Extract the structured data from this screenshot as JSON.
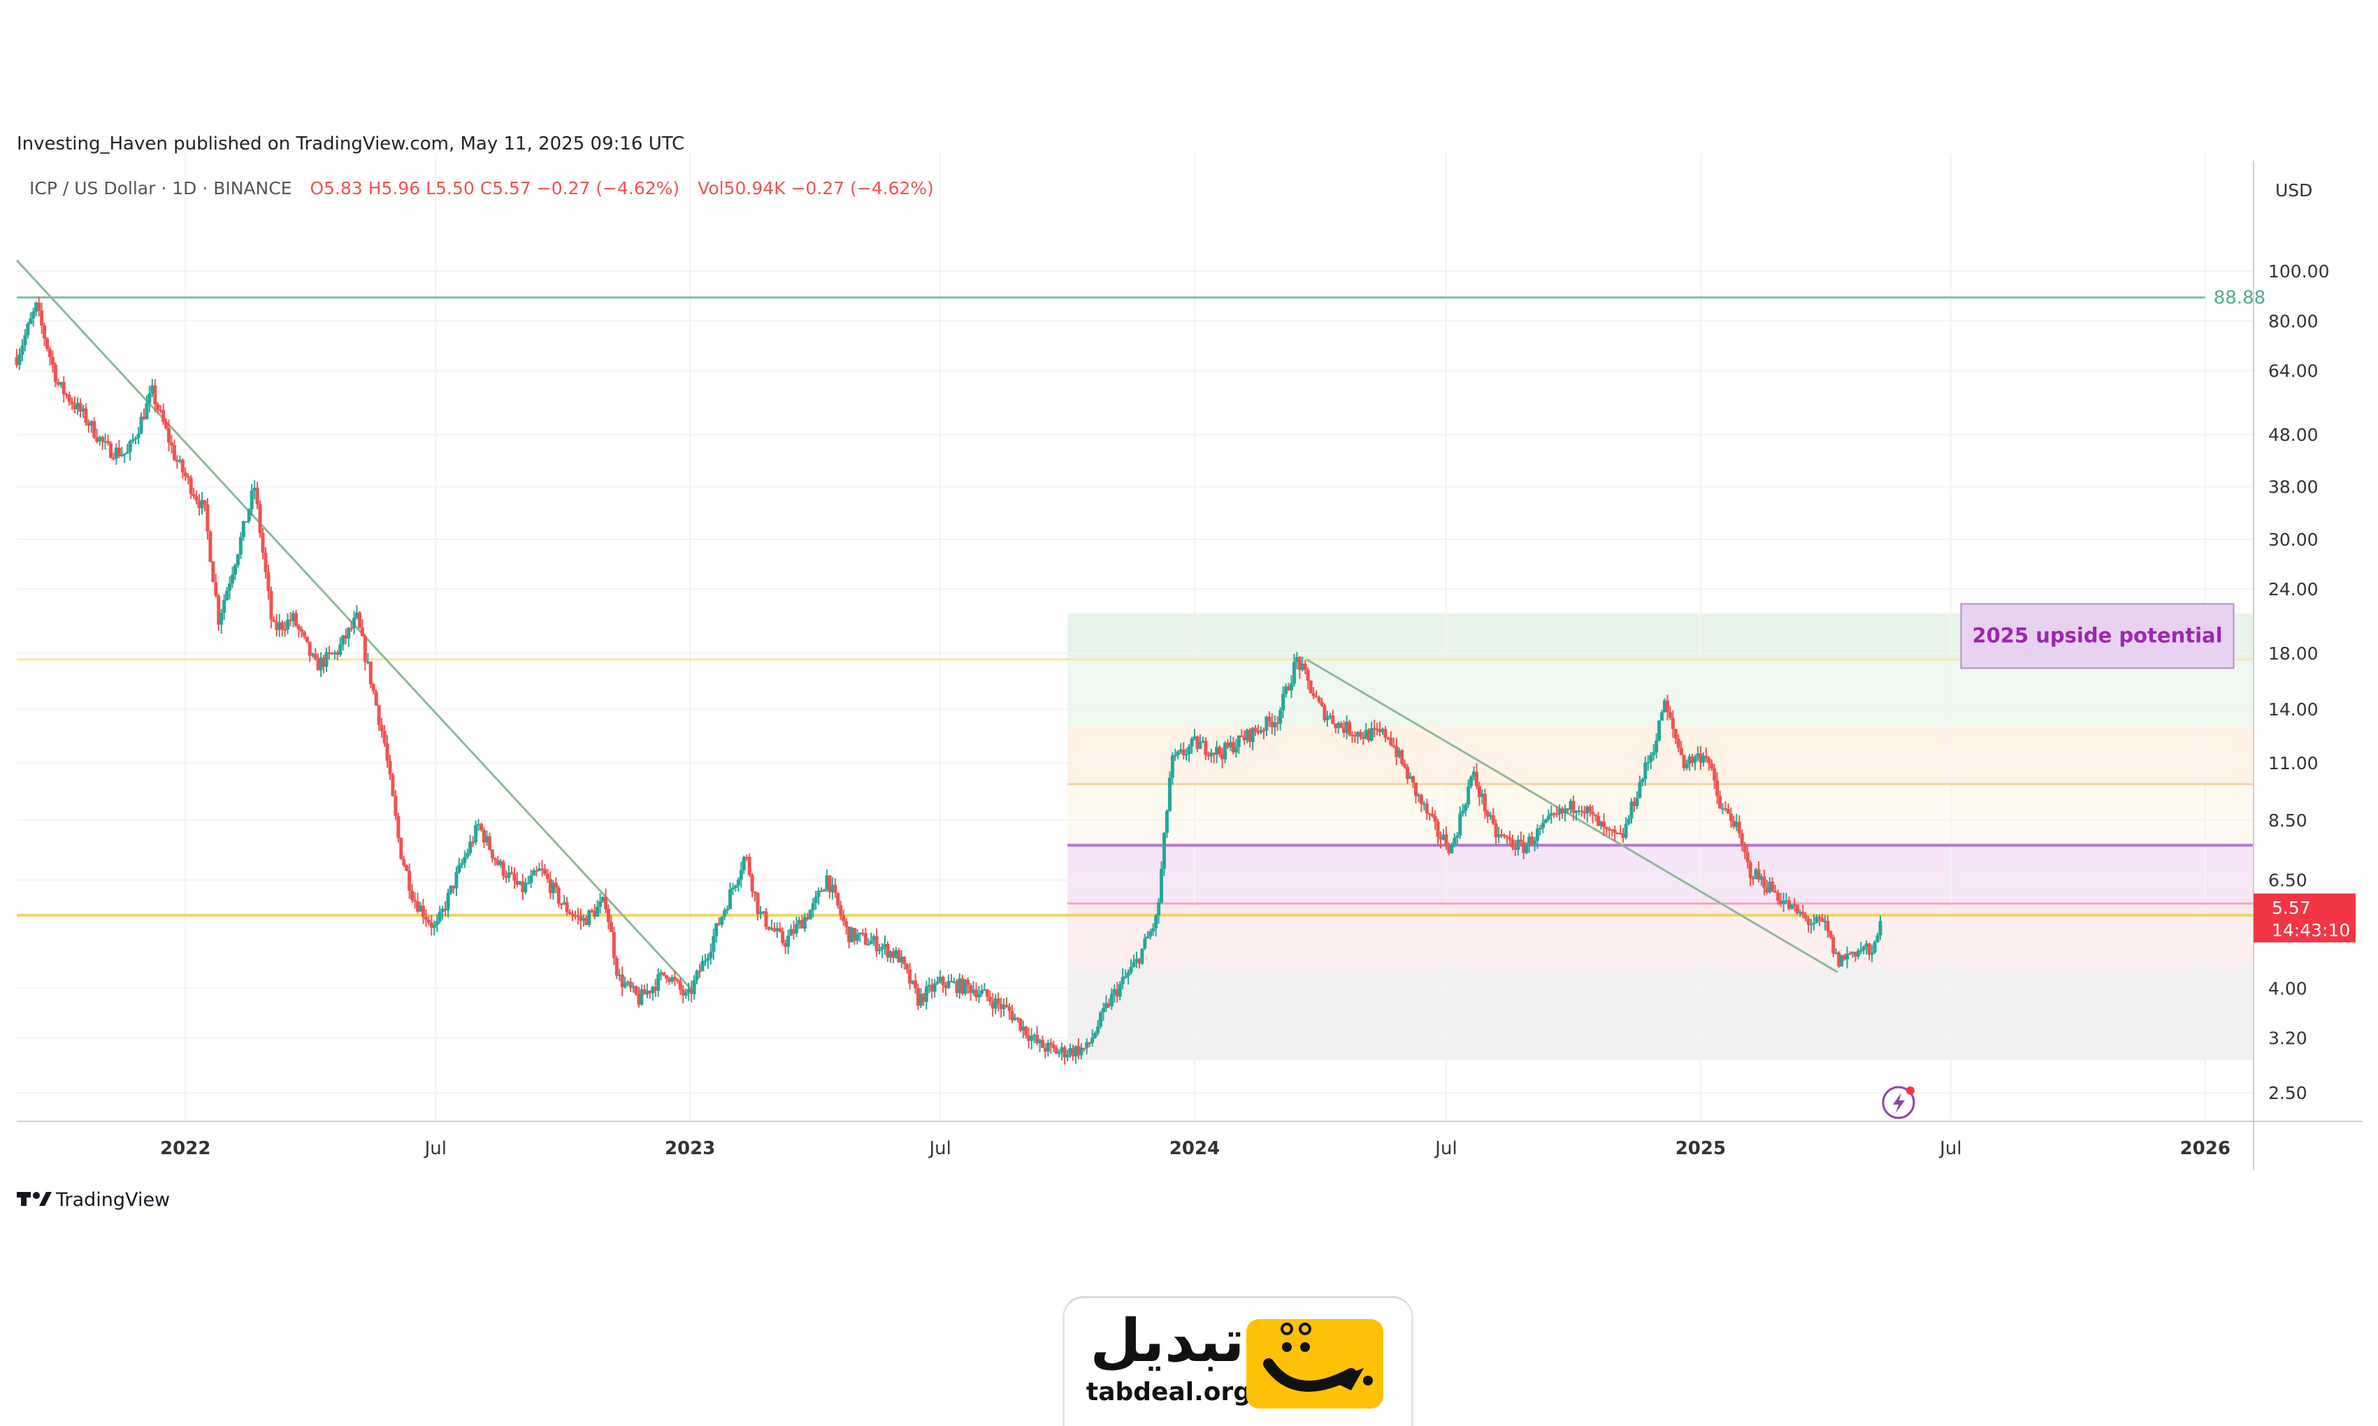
{
  "header": {
    "published": "Investing_Haven published on TradingView.com, May 11, 2025 09:16 UTC",
    "symbol": "ICP / US Dollar · 1D · BINANCE",
    "ohlc": "O5.83  H5.96  L5.50  C5.57  −0.27 (−4.62%)",
    "volume": "Vol50.94K  −0.27 (−4.62%)"
  },
  "footer": {
    "brand": "TradingView"
  },
  "logo": {
    "word": "تبدیل",
    "url": "tabdeal.org"
  },
  "colors": {
    "up": "#26a69a",
    "down": "#ef5350",
    "price_tag": "#f23645",
    "level_green": "#7fbfa5",
    "annotation": "#9c27b0"
  },
  "chart_data": {
    "type": "candlestick",
    "title": "ICP / US Dollar · 1D · BINANCE",
    "currency": "USD",
    "scale": "log",
    "ylim": [
      2.2,
      120
    ],
    "xlim": [
      "2021-09-01",
      "2026-02-05"
    ],
    "grid": true,
    "y_ticks": [
      "100.00",
      "80.00",
      "64.00",
      "48.00",
      "38.00",
      "30.00",
      "24.00",
      "18.00",
      "14.00",
      "11.00",
      "8.50",
      "6.50",
      "5.57",
      "4.00",
      "3.20",
      "2.50"
    ],
    "x_ticks": [
      {
        "date": "2022-01-01",
        "label": "2022"
      },
      {
        "date": "2022-07-01",
        "label": "Jul"
      },
      {
        "date": "2023-01-01",
        "label": "2023"
      },
      {
        "date": "2023-07-01",
        "label": "Jul"
      },
      {
        "date": "2024-01-01",
        "label": "2024"
      },
      {
        "date": "2024-07-01",
        "label": "Jul"
      },
      {
        "date": "2025-01-01",
        "label": "2025"
      },
      {
        "date": "2025-07-01",
        "label": "Jul"
      },
      {
        "date": "2026-01-01",
        "label": "2026"
      }
    ],
    "price_path": [
      [
        "2021-09-01",
        68
      ],
      [
        "2021-09-15",
        85
      ],
      [
        "2021-10-01",
        60
      ],
      [
        "2021-10-20",
        52
      ],
      [
        "2021-11-05",
        45
      ],
      [
        "2021-11-20",
        44
      ],
      [
        "2021-12-08",
        58
      ],
      [
        "2021-12-25",
        43
      ],
      [
        "2022-01-15",
        34
      ],
      [
        "2022-01-25",
        21
      ],
      [
        "2022-02-10",
        30
      ],
      [
        "2022-02-20",
        38
      ],
      [
        "2022-03-05",
        20
      ],
      [
        "2022-03-20",
        21
      ],
      [
        "2022-04-05",
        17
      ],
      [
        "2022-04-20",
        18
      ],
      [
        "2022-05-05",
        21
      ],
      [
        "2022-05-15",
        16
      ],
      [
        "2022-05-25",
        12
      ],
      [
        "2022-06-05",
        7.5
      ],
      [
        "2022-06-15",
        6.0
      ],
      [
        "2022-07-01",
        5.2
      ],
      [
        "2022-07-15",
        6.5
      ],
      [
        "2022-08-01",
        8.3
      ],
      [
        "2022-08-15",
        7.0
      ],
      [
        "2022-09-01",
        6.2
      ],
      [
        "2022-09-15",
        6.8
      ],
      [
        "2022-10-01",
        5.8
      ],
      [
        "2022-10-15",
        5.4
      ],
      [
        "2022-11-01",
        5.9
      ],
      [
        "2022-11-10",
        4.2
      ],
      [
        "2022-11-25",
        3.8
      ],
      [
        "2022-12-15",
        4.3
      ],
      [
        "2022-12-30",
        3.8
      ],
      [
        "2023-01-15",
        4.8
      ],
      [
        "2023-02-01",
        6.3
      ],
      [
        "2023-02-10",
        7.3
      ],
      [
        "2023-02-20",
        5.6
      ],
      [
        "2023-03-10",
        4.9
      ],
      [
        "2023-04-01",
        5.8
      ],
      [
        "2023-04-10",
        6.6
      ],
      [
        "2023-04-25",
        5.1
      ],
      [
        "2023-05-15",
        4.9
      ],
      [
        "2023-06-01",
        4.6
      ],
      [
        "2023-06-15",
        3.8
      ],
      [
        "2023-07-01",
        4.1
      ],
      [
        "2023-07-25",
        4.0
      ],
      [
        "2023-08-20",
        3.6
      ],
      [
        "2023-09-10",
        3.1
      ],
      [
        "2023-09-25",
        3.0
      ],
      [
        "2023-10-15",
        3.05
      ],
      [
        "2023-11-01",
        3.8
      ],
      [
        "2023-11-20",
        4.5
      ],
      [
        "2023-12-05",
        5.5
      ],
      [
        "2023-12-15",
        11
      ],
      [
        "2024-01-01",
        12
      ],
      [
        "2024-01-20",
        11.5
      ],
      [
        "2024-02-10",
        12.5
      ],
      [
        "2024-03-01",
        13.5
      ],
      [
        "2024-03-15",
        17.5
      ],
      [
        "2024-04-01",
        14
      ],
      [
        "2024-04-15",
        13
      ],
      [
        "2024-05-01",
        12.5
      ],
      [
        "2024-05-20",
        12.5
      ],
      [
        "2024-06-10",
        9.5
      ],
      [
        "2024-06-25",
        8.0
      ],
      [
        "2024-07-05",
        7.5
      ],
      [
        "2024-07-20",
        10.5
      ],
      [
        "2024-08-05",
        8.0
      ],
      [
        "2024-08-25",
        7.5
      ],
      [
        "2024-09-15",
        8.5
      ],
      [
        "2024-10-05",
        9.2
      ],
      [
        "2024-10-25",
        8.0
      ],
      [
        "2024-11-05",
        7.8
      ],
      [
        "2024-11-15",
        9.5
      ],
      [
        "2024-12-01",
        12.5
      ],
      [
        "2024-12-05",
        14.5
      ],
      [
        "2024-12-20",
        11
      ],
      [
        "2025-01-05",
        11.5
      ],
      [
        "2025-01-15",
        9.0
      ],
      [
        "2025-01-25",
        8.5
      ],
      [
        "2025-02-05",
        6.8
      ],
      [
        "2025-02-20",
        6.3
      ],
      [
        "2025-03-05",
        5.8
      ],
      [
        "2025-03-20",
        5.4
      ],
      [
        "2025-04-01",
        5.3
      ],
      [
        "2025-04-10",
        4.5
      ],
      [
        "2025-04-20",
        4.7
      ],
      [
        "2025-05-01",
        4.8
      ],
      [
        "2025-05-05",
        4.55
      ],
      [
        "2025-05-11",
        5.57
      ]
    ],
    "trendlines": [
      {
        "from": [
          "2021-09-01",
          105
        ],
        "to": [
          "2023-01-05",
          3.9
        ]
      },
      {
        "from": [
          "2024-03-22",
          17.5
        ],
        "to": [
          "2025-04-10",
          4.3
        ]
      }
    ],
    "horizontal_levels": [
      {
        "value": 88.88,
        "label": "88.88",
        "style": "green",
        "from": "2021-09-01",
        "to": "2026-01-01"
      },
      {
        "value": 17.5,
        "style": "faint-yellow",
        "from": "2021-09-01",
        "to": "2026-02-05"
      },
      {
        "value": 10.0,
        "style": "faint-orange",
        "from": "2023-10-01",
        "to": "2026-02-05"
      },
      {
        "value": 7.6,
        "style": "purple",
        "from": "2023-10-01",
        "to": "2026-02-05"
      },
      {
        "value": 5.85,
        "style": "pink",
        "from": "2023-10-01",
        "to": "2026-02-05"
      },
      {
        "value": 5.55,
        "style": "yellow",
        "from": "2021-09-01",
        "to": "2026-02-05"
      }
    ],
    "zones": [
      {
        "from": "2023-10-01",
        "to": "2026-02-05",
        "low": 17.5,
        "high": 21.5,
        "color": "#e6f4ea"
      },
      {
        "from": "2023-10-01",
        "to": "2026-02-05",
        "low": 13.0,
        "high": 17.5,
        "color": "#eef8f0"
      },
      {
        "from": "2023-10-01",
        "to": "2026-02-05",
        "low": 10.0,
        "high": 13.0,
        "color": "#fff2e6"
      },
      {
        "from": "2023-10-01",
        "to": "2026-02-05",
        "low": 7.6,
        "high": 10.0,
        "color": "#fffaf0"
      },
      {
        "from": "2023-10-01",
        "to": "2026-02-05",
        "low": 5.85,
        "high": 7.6,
        "color": "#f7e6f7"
      },
      {
        "from": "2023-10-01",
        "to": "2026-02-05",
        "low": 5.55,
        "high": 5.85,
        "color": "#fdeaea"
      },
      {
        "from": "2023-10-01",
        "to": "2026-02-05",
        "low": 4.4,
        "high": 5.55,
        "color": "#fdeff0"
      },
      {
        "from": "2023-10-01",
        "to": "2026-02-05",
        "low": 2.9,
        "high": 4.4,
        "color": "#f1f1f1"
      }
    ],
    "annotations": [
      {
        "text": "2025 upside potential",
        "date": "2025-10-15",
        "value": 19.5
      }
    ],
    "last_price": {
      "value": "5.57",
      "countdown": "14:43:10"
    }
  }
}
